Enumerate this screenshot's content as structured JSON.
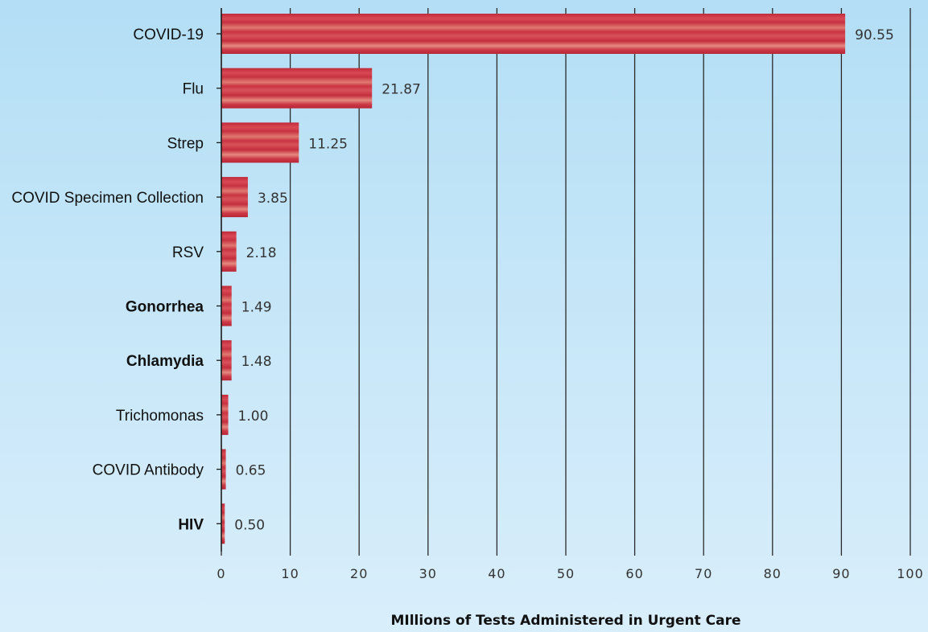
{
  "chart_data": {
    "type": "bar",
    "orientation": "horizontal",
    "categories": [
      "COVID-19",
      "Flu",
      "Strep",
      "COVID Specimen Collection",
      "RSV",
      "Gonorrhea",
      "Chlamydia",
      "Trichomonas",
      "COVID Antibody",
      "HIV"
    ],
    "bold_categories": [
      "Gonorrhea",
      "Chlamydia",
      "HIV"
    ],
    "values": [
      90.55,
      21.87,
      11.25,
      3.85,
      2.18,
      1.49,
      1.48,
      1.0,
      0.65,
      0.5
    ],
    "value_labels": [
      "90.55",
      "21.87",
      "11.25",
      "3.85",
      "2.18",
      "1.49",
      "1.48",
      "1.00",
      "0.65",
      "0.50"
    ],
    "xlim": [
      0,
      100
    ],
    "xticks": [
      0,
      10,
      20,
      30,
      40,
      50,
      60,
      70,
      80,
      90,
      100
    ],
    "xlabel": "MIllions of Tests Administered in Urgent Care",
    "ylabel": "",
    "title": "",
    "grid": "vertical",
    "bar_color": "#c8323f",
    "bar_highlight": "#e88a80"
  }
}
